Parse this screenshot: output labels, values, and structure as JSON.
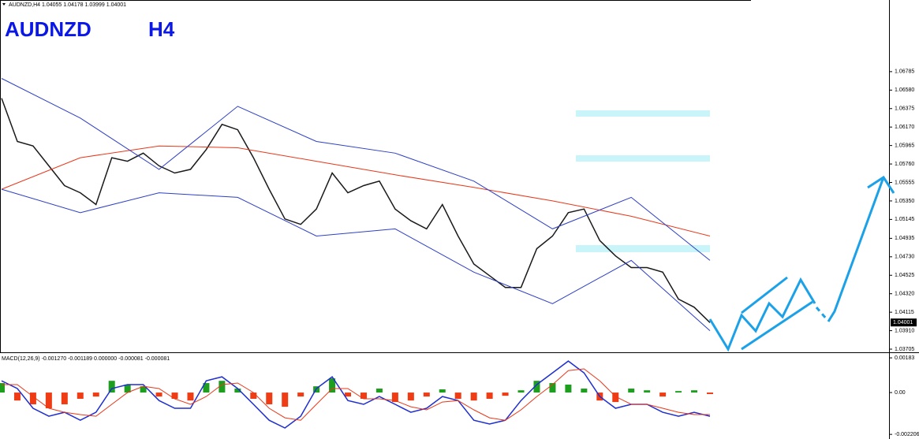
{
  "chart_data": [
    {
      "type": "line",
      "header": "AUDNZD,H4 1.04055 1.04178 1.03999 1.04001",
      "symbol": "AUDNZD",
      "timeframe": "H4",
      "ylim": [
        1.0367,
        1.0758
      ],
      "yticks": [
        1.06785,
        {
          "value": 1.0658,
          "label": "1.06580"
        },
        1.06375,
        {
          "value": 1.0617,
          "label": "1.06170"
        },
        1.05965,
        {
          "value": 1.0576,
          "label": "1.05760"
        },
        1.05555,
        {
          "value": 1.0535,
          "label": "1.05350"
        },
        1.05145,
        1.04935,
        {
          "value": 1.0473,
          "label": "1.04730"
        },
        1.04525,
        {
          "value": 1.0432,
          "label": "1.04320"
        },
        1.04115,
        {
          "value": 1.0391,
          "label": "1.03910"
        },
        1.03705
      ],
      "last_price": 1.04001,
      "series": [
        {
          "color": "#1a1a1a",
          "values": [
            1.0649,
            1.0601,
            1.0596,
            1.0574,
            1.0552,
            1.0544,
            1.0531,
            1.0583,
            1.0579,
            1.0588,
            1.0574,
            1.0566,
            1.057,
            1.0592,
            1.062,
            1.0614,
            1.0583,
            1.0548,
            1.0515,
            1.0509,
            1.0526,
            1.0566,
            1.0544,
            1.0552,
            1.0557,
            1.0526,
            1.0513,
            1.0504,
            1.0531,
            1.0496,
            1.0465,
            1.0452,
            1.0439,
            1.0439,
            1.0482,
            1.0496,
            1.0522,
            1.0526,
            1.0491,
            1.0474,
            1.0461,
            1.0461,
            1.0456,
            1.0426,
            1.0417,
            1.04
          ]
        },
        {
          "color": "#e8381a",
          "x": [
            0,
            5,
            10,
            15,
            20,
            25,
            30,
            35,
            40,
            45
          ],
          "values": [
            1.0548,
            1.0583,
            1.0596,
            1.0594,
            1.0579,
            1.0564,
            1.055,
            1.0535,
            1.0518,
            1.0496
          ]
        },
        {
          "color": "#2d3fc4",
          "x": [
            0,
            5,
            10,
            15,
            20,
            25,
            30,
            35,
            40,
            45
          ],
          "values": [
            1.0671,
            1.0627,
            1.057,
            1.064,
            1.0601,
            1.0588,
            1.0557,
            1.0504,
            1.0539,
            1.0469
          ]
        },
        {
          "color": "#2d3fc4",
          "x": [
            0,
            5,
            10,
            15,
            20,
            25,
            30,
            35,
            40,
            45
          ],
          "values": [
            1.0548,
            1.0522,
            1.0544,
            1.0539,
            1.0496,
            1.0504,
            1.0456,
            1.0421,
            1.0469,
            1.0391
          ]
        }
      ]
    },
    {
      "type": "bar",
      "header": "MACD(12,26,9) -0.001270 -0.001189 0.000000 -0.000081 -0.000081",
      "ylim": [
        -0.00245,
        0.00204
      ],
      "yticks": [
        0.00183,
        {
          "value": 0,
          "label": "0.00"
        },
        -0.002206
      ],
      "up_color": "#1e9e1e",
      "down_color": "#f03c14",
      "values": [
        0.0005,
        -0.00042,
        -0.00062,
        -0.00083,
        -0.00062,
        -0.00033,
        -0.00021,
        0.00062,
        0.00042,
        0.00033,
        -0.00021,
        -0.00033,
        -0.00042,
        0.0005,
        0.00062,
        0.00021,
        -0.00033,
        -0.00062,
        -0.00075,
        -0.00021,
        0.00033,
        0.00075,
        -0.00021,
        -0.00033,
        0.00021,
        -0.0005,
        -0.00042,
        -0.00021,
        0.00017,
        -0.00033,
        -0.00042,
        -0.00033,
        -0.00017,
        0.00012,
        0.00062,
        0.0005,
        0.00042,
        0.00021,
        -0.00042,
        -0.0005,
        0.00021,
        0.00012,
        -0.00021,
        8e-05,
        0.00012,
        -8e-05
      ],
      "series": [
        {
          "color": "#1f2fd0",
          "values": [
            0.00062,
            0.00021,
            -0.00083,
            -0.00125,
            -0.00104,
            -0.00146,
            -0.00104,
            0.00021,
            0.00042,
            0.00042,
            -0.00042,
            -0.00083,
            -0.00083,
            0.00062,
            0.00083,
            0.00021,
            -0.00062,
            -0.00146,
            -0.00187,
            -0.00125,
            0.00021,
            0.00083,
            -0.00042,
            -0.00062,
            -0.00021,
            -0.00062,
            -0.00104,
            -0.00083,
            -0.00021,
            -0.00042,
            -0.00146,
            -0.00166,
            -0.00146,
            -0.00042,
            0.00042,
            0.00104,
            0.00166,
            0.00104,
            -0.00021,
            -0.00083,
            -0.00062,
            -0.00062,
            -0.00104,
            -0.00125,
            -0.00104,
            -0.00125
          ]
        },
        {
          "color": "#e8381a",
          "values": [
            0.00042,
            0.00042,
            -0.00021,
            -0.00083,
            -0.00104,
            -0.00116,
            -0.00125,
            -0.00062,
            0,
            0.00033,
            0.00021,
            -0.00033,
            -0.00062,
            -0.00021,
            0.00042,
            0.0005,
            0,
            -0.00083,
            -0.00133,
            -0.00146,
            -0.00062,
            0.00021,
            0.00021,
            -0.00033,
            -0.00033,
            -0.00042,
            -0.00075,
            -0.00091,
            -0.0005,
            -0.00042,
            -0.00091,
            -0.00133,
            -0.00146,
            -0.00091,
            -0.00021,
            0.00042,
            0.00116,
            0.00125,
            0.00062,
            -0.00021,
            -0.00062,
            -0.00062,
            -0.00083,
            -0.00104,
            -0.00116,
            -0.00116
          ]
        }
      ]
    }
  ]
}
